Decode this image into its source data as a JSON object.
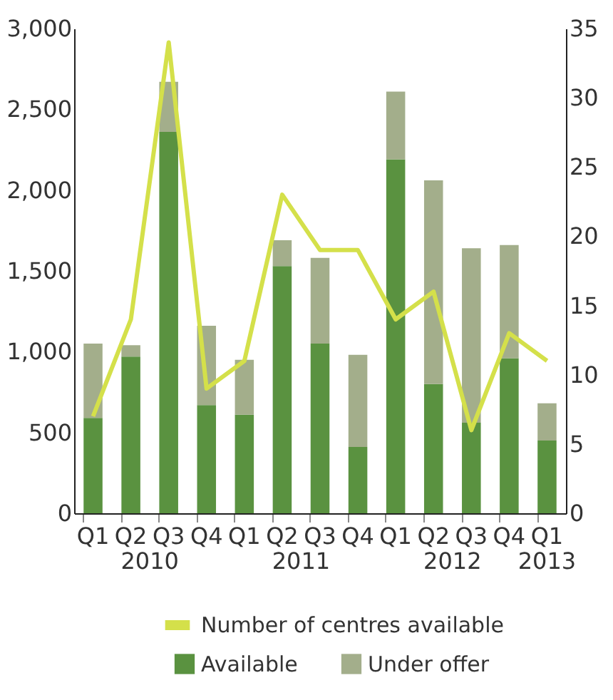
{
  "chart_data": {
    "type": "bar",
    "stacked": true,
    "categories": [
      "Q1",
      "Q2",
      "Q3",
      "Q4",
      "Q1",
      "Q2",
      "Q3",
      "Q4",
      "Q1",
      "Q2",
      "Q3",
      "Q4",
      "Q1"
    ],
    "series": [
      {
        "name": "Available",
        "color": "#5a9240",
        "values": [
          590,
          970,
          2360,
          670,
          610,
          1530,
          1050,
          410,
          2190,
          800,
          560,
          960,
          450
        ]
      },
      {
        "name": "Under offer",
        "color": "#a3ae8b",
        "values": [
          460,
          70,
          310,
          490,
          340,
          160,
          530,
          570,
          420,
          1260,
          1080,
          700,
          230
        ]
      },
      {
        "name": "Number of centres available",
        "type": "line",
        "axis": "y2",
        "color": "#d4e04a",
        "values": [
          7,
          14,
          34,
          9,
          11,
          23,
          19,
          19,
          14,
          16,
          6,
          13,
          11
        ]
      }
    ],
    "ylim": [
      0,
      3000
    ],
    "yticks": [
      {
        "value": 0,
        "label": "0"
      },
      {
        "value": 500,
        "label": "500"
      },
      {
        "value": 1000,
        "label": "1,000"
      },
      {
        "value": 1500,
        "label": "1,500"
      },
      {
        "value": 2000,
        "label": "2,000"
      },
      {
        "value": 2500,
        "label": "2,500"
      },
      {
        "value": 3000,
        "label": "3,000"
      }
    ],
    "y2lim": [
      0,
      35
    ],
    "y2ticks": [
      0,
      5,
      10,
      15,
      20,
      25,
      30,
      35
    ],
    "annotations": [
      "2010",
      "2011",
      "2012",
      "2013"
    ],
    "grid": false,
    "legend": "bottom"
  }
}
